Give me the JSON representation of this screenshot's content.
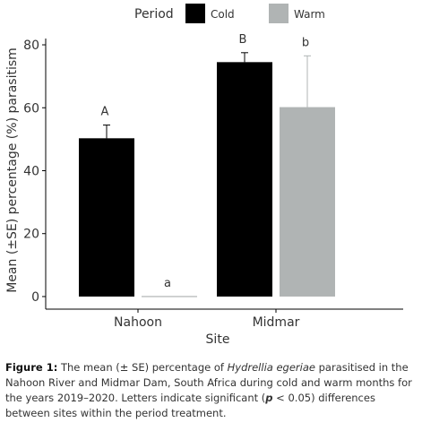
{
  "chart_data": {
    "type": "bar",
    "categories": [
      "Nahoon",
      "Midmar"
    ],
    "series": [
      {
        "name": "Cold",
        "color": "#000000",
        "values": [
          50.3,
          74.5
        ],
        "se": [
          4.2,
          3.0
        ],
        "letters": [
          "A",
          "B"
        ]
      },
      {
        "name": "Warm",
        "color": "#b0b4b4",
        "values": [
          0,
          60.2
        ],
        "se": [
          0,
          16.3
        ],
        "letters": [
          "a",
          "b"
        ]
      }
    ],
    "title": "",
    "xlabel": "Site",
    "ylabel": "Mean (±SE) percentage (%) parasitism",
    "ylim": [
      0,
      82
    ],
    "yticks": [
      0,
      20,
      40,
      60,
      80
    ],
    "legend_title": "Period",
    "legend_position": "top",
    "grid": false
  },
  "caption": {
    "label": "Figure 1:",
    "text_1": " The mean (± SE) percentage of ",
    "species": "Hydrellia egeriae",
    "text_2": " parasitised in the Nahoon River and Midmar Dam, South Africa during cold and warm months for the years 2019–2020. Letters indicate significant (",
    "p_symbol": "p",
    "text_3": " < 0.05) differences between sites within the period treatment."
  }
}
